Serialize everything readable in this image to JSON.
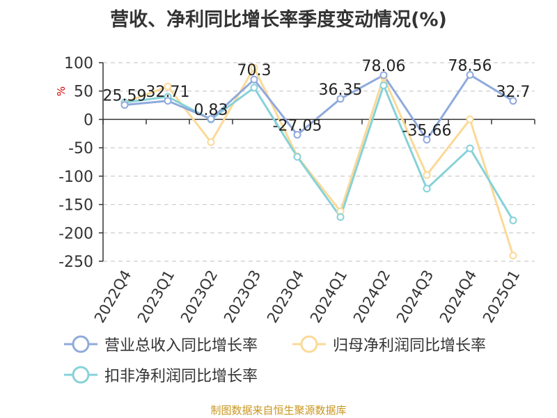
{
  "title": "营收、净利同比增长率季度变动情况(%)",
  "source": "制图数据来自恒生聚源数据库",
  "colors": {
    "title": "#333333",
    "axis_text": "#333333",
    "unit": "#cc0000",
    "grid": "#cccccc",
    "source": "#c8961e"
  },
  "chart_data": {
    "type": "line",
    "title": "营收、净利同比增长率季度变动情况(%)",
    "ylabel": "%",
    "ylim": [
      -250,
      100
    ],
    "yticks": [
      100,
      50,
      0,
      -50,
      -100,
      -150,
      -200,
      -250
    ],
    "grid": "horizontal dashed",
    "legend_position": "bottom",
    "categories": [
      "2022Q4",
      "2023Q1",
      "2023Q2",
      "2023Q3",
      "2023Q4",
      "2024Q1",
      "2024Q2",
      "2024Q3",
      "2024Q4",
      "2025Q1"
    ],
    "series": [
      {
        "name": "营业总收入同比增长率",
        "color": "#8faadc",
        "values": [
          25.59,
          32.71,
          0.83,
          70.3,
          -27.05,
          36.35,
          78.06,
          -35.66,
          78.56,
          32.7
        ],
        "data_labels": [
          "25.59",
          "32.71",
          "0.83",
          "70.3",
          "-27.05",
          "36.35",
          "78.06",
          "-35.66",
          "78.56",
          "32.7"
        ]
      },
      {
        "name": "归母净利润同比增长率",
        "color": "#fbd997",
        "values": [
          30,
          58,
          -40,
          91,
          -65,
          -162,
          75,
          -98,
          0,
          -240
        ]
      },
      {
        "name": "扣非净利润同比增长率",
        "color": "#86d2d8",
        "values": [
          30,
          40,
          0,
          56,
          -66,
          -172,
          60,
          -122,
          -51,
          -178
        ]
      }
    ]
  }
}
